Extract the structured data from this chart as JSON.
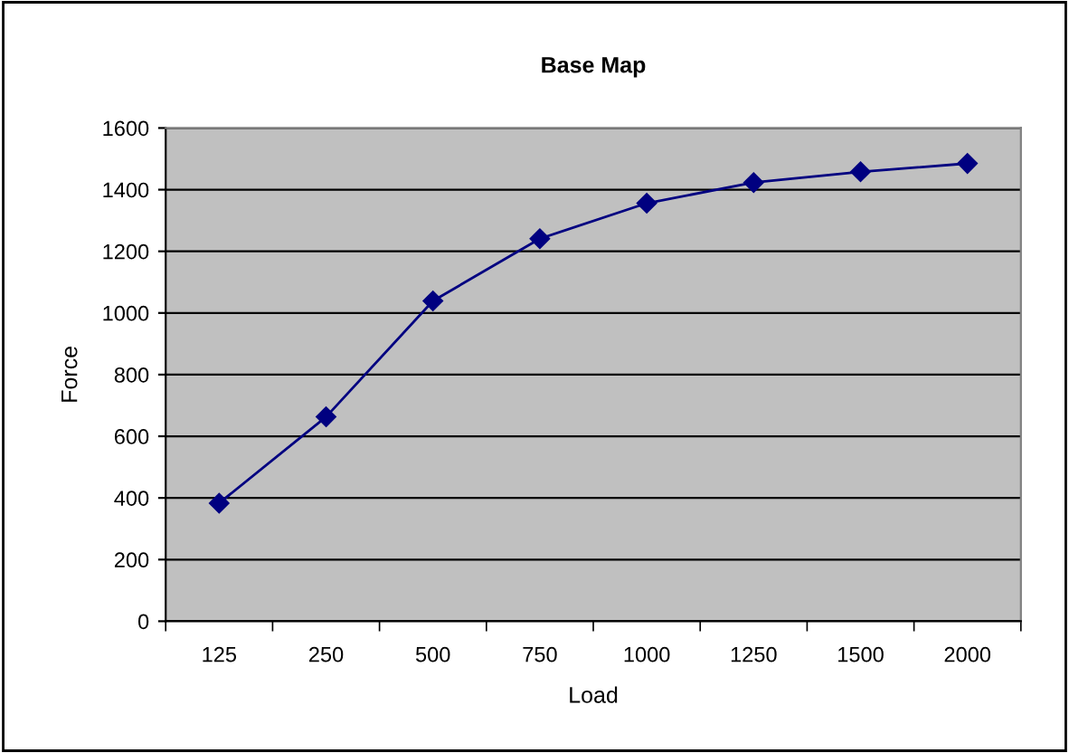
{
  "chart_data": {
    "type": "line",
    "title": "Base Map",
    "xlabel": "Load",
    "ylabel": "Force",
    "categories": [
      "125",
      "250",
      "500",
      "750",
      "1000",
      "1250",
      "1500",
      "2000"
    ],
    "series": [
      {
        "color": "#000080",
        "values": [
          383,
          663,
          1039,
          1241,
          1356,
          1423,
          1458,
          1485
        ]
      }
    ],
    "ylim": [
      0,
      1600
    ],
    "yticks": [
      0,
      200,
      400,
      600,
      800,
      1000,
      1200,
      1400,
      1600
    ],
    "grid": "y",
    "marker": "diamond",
    "line_style": "solid",
    "legend": false
  }
}
